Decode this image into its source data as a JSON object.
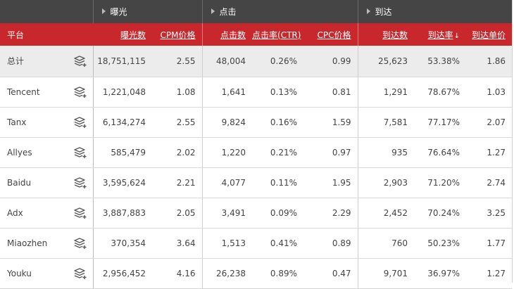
{
  "groups": {
    "exposure": "曝光",
    "click": "点击",
    "arrival": "到达"
  },
  "columns": {
    "platform": "平台",
    "impressions": "曝光数",
    "cpm": "CPM价格",
    "clicks": "点击数",
    "ctr": "点击率(CTR)",
    "cpc": "CPC价格",
    "arrivals": "到达数",
    "arrival_rate": "到达率",
    "arrival_rate_sort": "↓",
    "arrival_unit_price": "到达单价"
  },
  "rows": [
    {
      "platform": "总计",
      "impressions": "18,751,115",
      "cpm": "2.55",
      "clicks": "48,004",
      "ctr": "0.26%",
      "cpc": "0.99",
      "arrivals": "25,623",
      "arrival_rate": "53.38%",
      "arrival_unit_price": "1.86"
    },
    {
      "platform": "Tencent",
      "impressions": "1,221,048",
      "cpm": "1.08",
      "clicks": "1,641",
      "ctr": "0.13%",
      "cpc": "0.81",
      "arrivals": "1,291",
      "arrival_rate": "78.67%",
      "arrival_unit_price": "1.03"
    },
    {
      "platform": "Tanx",
      "impressions": "6,134,274",
      "cpm": "2.55",
      "clicks": "9,824",
      "ctr": "0.16%",
      "cpc": "1.59",
      "arrivals": "7,581",
      "arrival_rate": "77.17%",
      "arrival_unit_price": "2.07"
    },
    {
      "platform": "Allyes",
      "impressions": "585,479",
      "cpm": "2.02",
      "clicks": "1,220",
      "ctr": "0.21%",
      "cpc": "0.97",
      "arrivals": "935",
      "arrival_rate": "76.64%",
      "arrival_unit_price": "1.27"
    },
    {
      "platform": "Baidu",
      "impressions": "3,595,624",
      "cpm": "2.21",
      "clicks": "4,077",
      "ctr": "0.11%",
      "cpc": "1.95",
      "arrivals": "2,903",
      "arrival_rate": "71.20%",
      "arrival_unit_price": "2.74"
    },
    {
      "platform": "Adx",
      "impressions": "3,887,883",
      "cpm": "2.05",
      "clicks": "3,491",
      "ctr": "0.09%",
      "cpc": "2.29",
      "arrivals": "2,452",
      "arrival_rate": "70.24%",
      "arrival_unit_price": "3.25"
    },
    {
      "platform": "Miaozhen",
      "impressions": "370,354",
      "cpm": "3.64",
      "clicks": "1,513",
      "ctr": "0.41%",
      "cpc": "0.89",
      "arrivals": "760",
      "arrival_rate": "50.23%",
      "arrival_unit_price": "1.77"
    },
    {
      "platform": "Youku",
      "impressions": "2,956,452",
      "cpm": "4.16",
      "clicks": "26,238",
      "ctr": "0.89%",
      "cpc": "0.47",
      "arrivals": "9,701",
      "arrival_rate": "36.97%",
      "arrival_unit_price": "1.27"
    }
  ],
  "icons": {
    "row_action": "layers-plus-icon",
    "group_toggle": "triangle-right-icon"
  },
  "colors": {
    "group_header_bg": "#454545",
    "column_header_bg": "#c8282c",
    "total_row_bg": "#ececec"
  }
}
